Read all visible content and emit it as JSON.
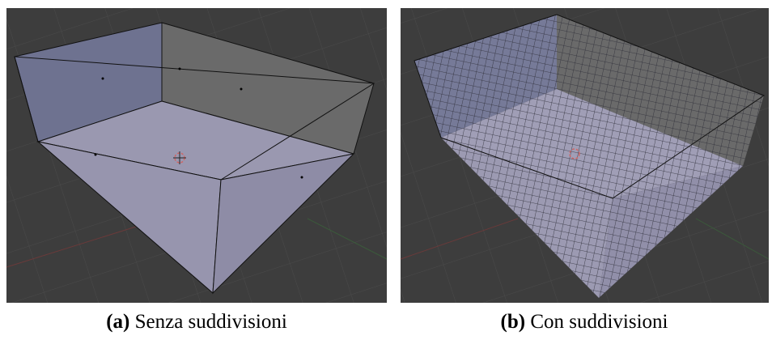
{
  "figures": [
    {
      "label": "(a)",
      "caption": "Senza suddivisioni"
    },
    {
      "label": "(b)",
      "caption": "Con suddivisioni"
    }
  ]
}
